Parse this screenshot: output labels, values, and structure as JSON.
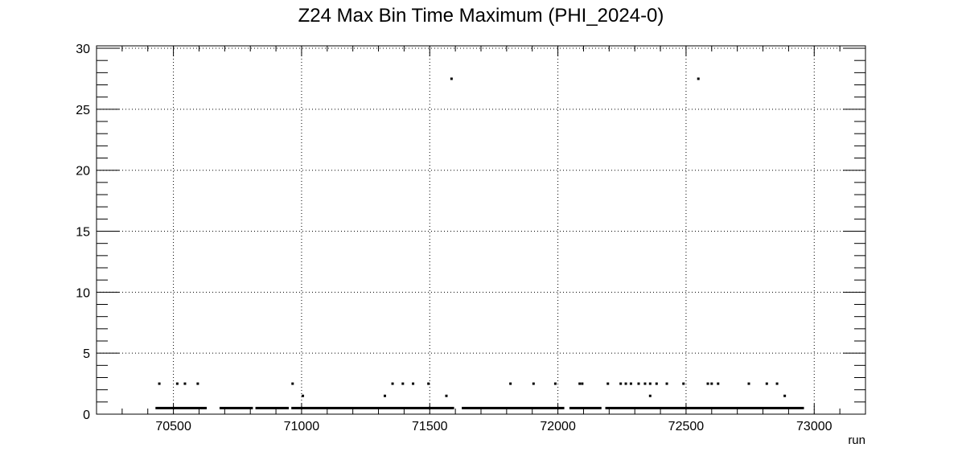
{
  "chart_data": {
    "type": "scatter",
    "title": "Z24 Max Bin Time Maximum (PHI_2024-0)",
    "xlabel": "run",
    "ylabel": "",
    "xlim": [
      70200,
      73200
    ],
    "ylim": [
      0,
      30.2
    ],
    "xticks": [
      70500,
      71000,
      71500,
      72000,
      72500,
      73000
    ],
    "yticks": [
      0,
      5,
      10,
      15,
      20,
      25,
      30
    ],
    "grid": true,
    "marker": "dot",
    "dense_segments": [
      {
        "y": 0.5,
        "x_start": 70430,
        "x_end": 70630
      },
      {
        "y": 0.5,
        "x_start": 70680,
        "x_end": 70810
      },
      {
        "y": 0.5,
        "x_start": 70820,
        "x_end": 70950
      },
      {
        "y": 0.5,
        "x_start": 70960,
        "x_end": 71595
      },
      {
        "y": 0.5,
        "x_start": 71625,
        "x_end": 72025
      },
      {
        "y": 0.5,
        "x_start": 72045,
        "x_end": 72170
      },
      {
        "y": 0.5,
        "x_start": 72185,
        "x_end": 72960
      }
    ],
    "points": [
      {
        "x": 71585,
        "y": 27.5
      },
      {
        "x": 72548,
        "y": 27.5
      },
      {
        "x": 70445,
        "y": 2.5
      },
      {
        "x": 70515,
        "y": 2.5
      },
      {
        "x": 70545,
        "y": 2.5
      },
      {
        "x": 70595,
        "y": 2.5
      },
      {
        "x": 70965,
        "y": 2.5
      },
      {
        "x": 71355,
        "y": 2.5
      },
      {
        "x": 71395,
        "y": 2.5
      },
      {
        "x": 71435,
        "y": 2.5
      },
      {
        "x": 71495,
        "y": 2.5
      },
      {
        "x": 71815,
        "y": 2.5
      },
      {
        "x": 71905,
        "y": 2.5
      },
      {
        "x": 71990,
        "y": 2.5
      },
      {
        "x": 72085,
        "y": 2.5
      },
      {
        "x": 72095,
        "y": 2.5
      },
      {
        "x": 72195,
        "y": 2.5
      },
      {
        "x": 72245,
        "y": 2.5
      },
      {
        "x": 72265,
        "y": 2.5
      },
      {
        "x": 72285,
        "y": 2.5
      },
      {
        "x": 72315,
        "y": 2.5
      },
      {
        "x": 72340,
        "y": 2.5
      },
      {
        "x": 72360,
        "y": 2.5
      },
      {
        "x": 72385,
        "y": 2.5
      },
      {
        "x": 72425,
        "y": 2.5
      },
      {
        "x": 72490,
        "y": 2.5
      },
      {
        "x": 72585,
        "y": 2.5
      },
      {
        "x": 72600,
        "y": 2.5
      },
      {
        "x": 72625,
        "y": 2.5
      },
      {
        "x": 72745,
        "y": 2.5
      },
      {
        "x": 72815,
        "y": 2.5
      },
      {
        "x": 72855,
        "y": 2.5
      },
      {
        "x": 71005,
        "y": 1.5
      },
      {
        "x": 71325,
        "y": 1.5
      },
      {
        "x": 71565,
        "y": 1.5
      },
      {
        "x": 72360,
        "y": 1.5
      },
      {
        "x": 72885,
        "y": 1.5
      }
    ]
  }
}
